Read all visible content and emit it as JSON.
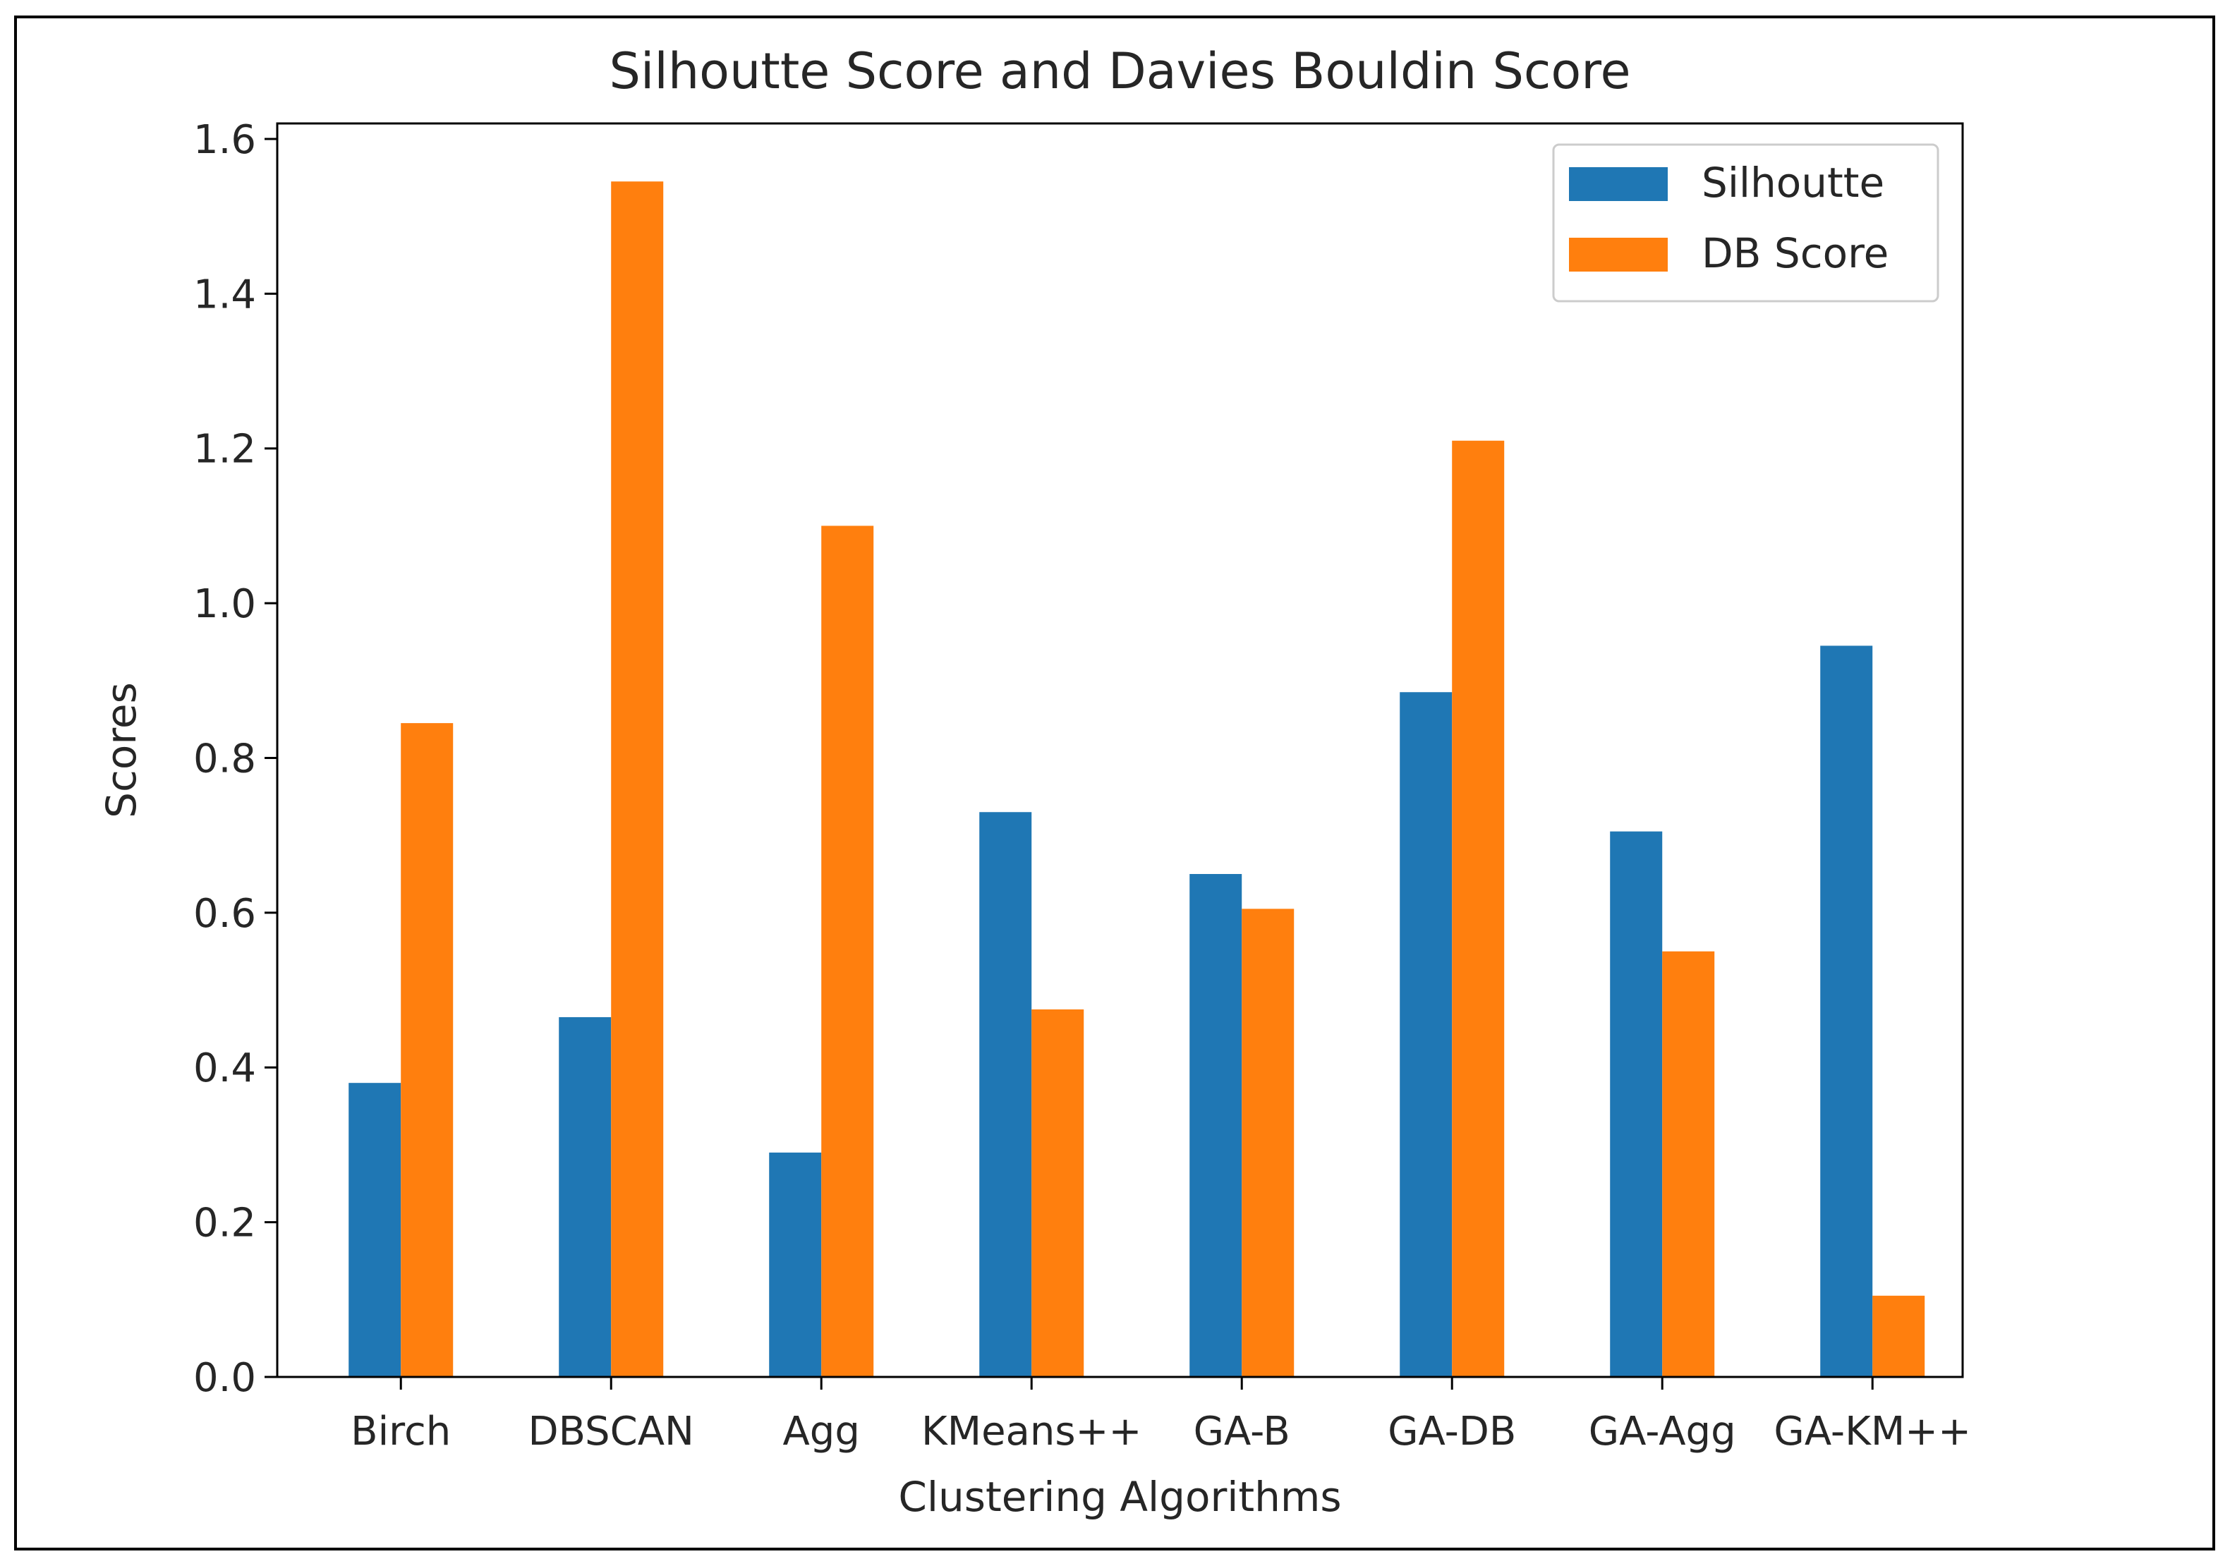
{
  "chart_data": {
    "type": "bar",
    "title": "Silhoutte Score and Davies Bouldin Score",
    "xlabel": "Clustering Algorithms",
    "ylabel": "Scores",
    "categories": [
      "Birch",
      "DBSCAN",
      "Agg",
      "KMeans++",
      "GA-B",
      "GA-DB",
      "GA-Agg",
      "GA-KM++"
    ],
    "series": [
      {
        "name": "Silhoutte",
        "color": "#1f77b4",
        "values": [
          0.38,
          0.465,
          0.29,
          0.73,
          0.65,
          0.885,
          0.705,
          0.945
        ]
      },
      {
        "name": "DB Score",
        "color": "#ff7f0e",
        "values": [
          0.845,
          1.545,
          1.1,
          0.475,
          0.605,
          1.21,
          0.55,
          0.105
        ]
      }
    ],
    "ylim": [
      0,
      1.62
    ],
    "yticks": [
      "0.0",
      "0.2",
      "0.4",
      "0.6",
      "0.8",
      "1.0",
      "1.2",
      "1.4",
      "1.6"
    ],
    "grid": false,
    "legend_position": "top-right"
  }
}
